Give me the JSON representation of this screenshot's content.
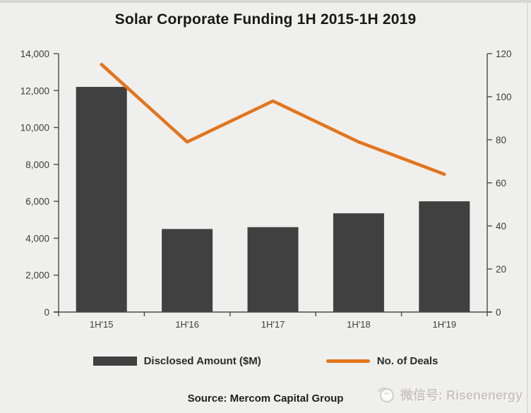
{
  "title": "Solar Corporate Funding 1H 2015-1H 2019",
  "source": "Source: Mercom Capital Group",
  "watermark": {
    "icon": "risenenergy-sun-logo",
    "text": "微信号: Risenenergy"
  },
  "colors": {
    "background": "#EFEFED",
    "bar": "#404040",
    "line": "#E2751D",
    "axis": "#4a4a4a",
    "tick_text": "#3d3d3d",
    "watermark_text": "#C8C6C3"
  },
  "chart_data": {
    "type": "bar+line combo",
    "title": "Solar Corporate Funding 1H 2015-1H 2019",
    "categories": [
      "1H'15",
      "1H'16",
      "1H'17",
      "1H'18",
      "1H'19"
    ],
    "series": [
      {
        "name": "Disclosed Amount ($M)",
        "type": "bar",
        "axis": "left",
        "values": [
          12200,
          4500,
          4600,
          5350,
          6000
        ]
      },
      {
        "name": "No. of Deals",
        "type": "line",
        "axis": "right",
        "values": [
          115,
          79,
          98,
          79,
          64
        ]
      }
    ],
    "left_axis": {
      "min": 0,
      "max": 14000,
      "step": 2000,
      "tick_labels": [
        "0",
        "2,000",
        "4,000",
        "6,000",
        "8,000",
        "10,000",
        "12,000",
        "14,000"
      ]
    },
    "right_axis": {
      "min": 0,
      "max": 120,
      "step": 20,
      "tick_labels": [
        "0",
        "20",
        "40",
        "60",
        "80",
        "100",
        "120"
      ]
    },
    "grid": false,
    "legend_position": "bottom"
  }
}
